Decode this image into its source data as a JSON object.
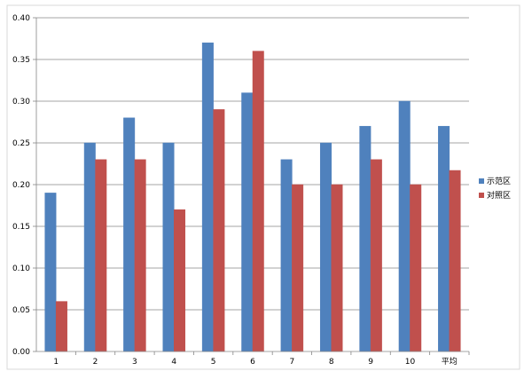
{
  "chart_data": {
    "type": "bar",
    "categories": [
      "1",
      "2",
      "3",
      "4",
      "5",
      "6",
      "7",
      "8",
      "9",
      "10",
      "平均"
    ],
    "series": [
      {
        "name": "示范区",
        "color": "#4f81bd",
        "values": [
          0.19,
          0.25,
          0.28,
          0.25,
          0.37,
          0.31,
          0.23,
          0.25,
          0.27,
          0.3,
          0.27
        ]
      },
      {
        "name": "对照区",
        "color": "#c0504d",
        "values": [
          0.06,
          0.23,
          0.23,
          0.17,
          0.29,
          0.36,
          0.2,
          0.2,
          0.23,
          0.2,
          0.217
        ]
      }
    ],
    "ylim": [
      0,
      0.4
    ],
    "yticks": [
      "0.00",
      "0.05",
      "0.10",
      "0.15",
      "0.20",
      "0.25",
      "0.30",
      "0.35",
      "0.40"
    ],
    "grid": true,
    "legend": "right",
    "title": "",
    "xlabel": "",
    "ylabel": ""
  }
}
